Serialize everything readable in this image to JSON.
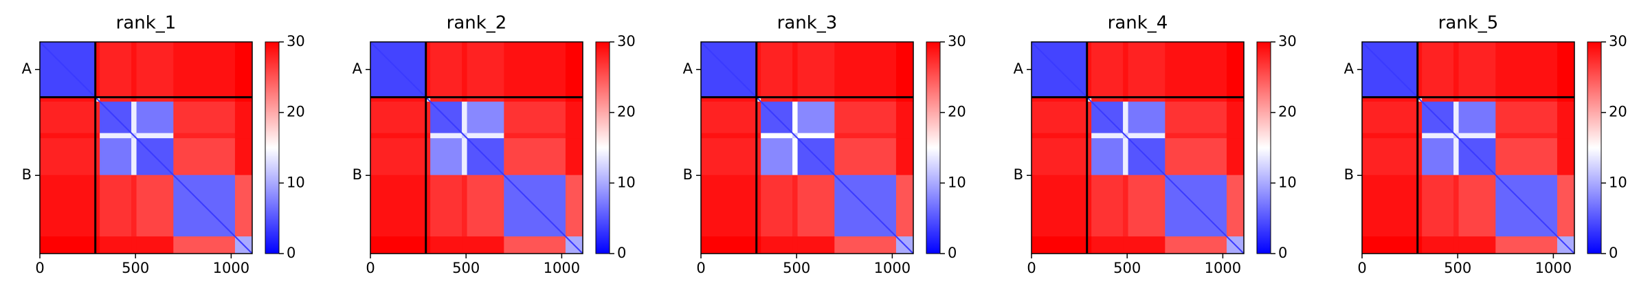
{
  "chart_data": [
    {
      "type": "heatmap",
      "title": "rank_1",
      "xlim": [
        0,
        1110
      ],
      "ylim": [
        1110,
        0
      ],
      "xticks": [
        0,
        500,
        1000
      ],
      "yticks": [
        {
          "value": 145,
          "label": "A"
        },
        {
          "value": 700,
          "label": "B"
        }
      ],
      "bins": [
        0,
        290,
        313,
        478,
        505,
        698,
        1020,
        1110
      ],
      "z": [
        [
          4,
          29,
          28,
          29,
          28,
          29,
          30
        ],
        [
          29,
          15,
          28,
          29,
          28,
          29,
          30
        ],
        [
          28,
          28,
          5,
          14,
          7,
          27,
          29
        ],
        [
          29,
          29,
          14,
          12,
          14,
          28,
          29
        ],
        [
          28,
          28,
          7,
          14,
          5,
          26,
          29
        ],
        [
          29,
          29,
          27,
          28,
          26,
          6,
          25
        ],
        [
          30,
          30,
          29,
          29,
          29,
          25,
          10
        ]
      ],
      "colors": [
        "#0000ff",
        "#ffffff",
        "#ff0000"
      ],
      "clim": [
        0,
        30
      ],
      "cticks": [
        0,
        10,
        20,
        30
      ],
      "chain_breaks": [
        290
      ]
    },
    {
      "type": "heatmap",
      "title": "rank_2",
      "xlim": [
        0,
        1110
      ],
      "ylim": [
        1110,
        0
      ],
      "xticks": [
        0,
        500,
        1000
      ],
      "yticks": [
        {
          "value": 145,
          "label": "A"
        },
        {
          "value": 700,
          "label": "B"
        }
      ],
      "bins": [
        0,
        290,
        313,
        478,
        505,
        698,
        1020,
        1110
      ],
      "z": [
        [
          4,
          29,
          28,
          29,
          28,
          29,
          30
        ],
        [
          29,
          15,
          28,
          29,
          28,
          29,
          30
        ],
        [
          28,
          28,
          5,
          14,
          8,
          27,
          29
        ],
        [
          29,
          29,
          14,
          12,
          14,
          28,
          29
        ],
        [
          28,
          28,
          8,
          14,
          5,
          26,
          29
        ],
        [
          29,
          29,
          27,
          28,
          26,
          6,
          25
        ],
        [
          30,
          30,
          29,
          29,
          29,
          25,
          10
        ]
      ],
      "colors": [
        "#0000ff",
        "#ffffff",
        "#ff0000"
      ],
      "clim": [
        0,
        30
      ],
      "cticks": [
        0,
        10,
        20,
        30
      ],
      "chain_breaks": [
        290
      ]
    },
    {
      "type": "heatmap",
      "title": "rank_3",
      "xlim": [
        0,
        1110
      ],
      "ylim": [
        1110,
        0
      ],
      "xticks": [
        0,
        500,
        1000
      ],
      "yticks": [
        {
          "value": 145,
          "label": "A"
        },
        {
          "value": 700,
          "label": "B"
        }
      ],
      "bins": [
        0,
        290,
        313,
        478,
        505,
        698,
        1020,
        1110
      ],
      "z": [
        [
          4,
          29,
          28,
          29,
          28,
          29,
          30
        ],
        [
          29,
          15,
          28,
          29,
          28,
          29,
          30
        ],
        [
          28,
          28,
          5,
          15,
          8,
          27,
          29
        ],
        [
          29,
          29,
          15,
          12,
          15,
          28,
          29
        ],
        [
          28,
          28,
          8,
          15,
          5,
          26,
          29
        ],
        [
          29,
          29,
          27,
          28,
          26,
          6,
          25
        ],
        [
          30,
          30,
          29,
          29,
          29,
          25,
          10
        ]
      ],
      "colors": [
        "#0000ff",
        "#ffffff",
        "#ff0000"
      ],
      "clim": [
        0,
        30
      ],
      "cticks": [
        0,
        10,
        20,
        30
      ],
      "chain_breaks": [
        290
      ]
    },
    {
      "type": "heatmap",
      "title": "rank_4",
      "xlim": [
        0,
        1110
      ],
      "ylim": [
        1110,
        0
      ],
      "xticks": [
        0,
        500,
        1000
      ],
      "yticks": [
        {
          "value": 145,
          "label": "A"
        },
        {
          "value": 700,
          "label": "B"
        }
      ],
      "bins": [
        0,
        290,
        313,
        478,
        505,
        698,
        1020,
        1110
      ],
      "z": [
        [
          4,
          29,
          28,
          29,
          28,
          29,
          30
        ],
        [
          29,
          15,
          28,
          29,
          28,
          29,
          30
        ],
        [
          28,
          28,
          5,
          14,
          7,
          27,
          29
        ],
        [
          29,
          29,
          14,
          12,
          14,
          28,
          29
        ],
        [
          28,
          28,
          7,
          14,
          5,
          26,
          29
        ],
        [
          29,
          29,
          27,
          28,
          26,
          6,
          25
        ],
        [
          30,
          30,
          29,
          29,
          29,
          25,
          10
        ]
      ],
      "colors": [
        "#0000ff",
        "#ffffff",
        "#ff0000"
      ],
      "clim": [
        0,
        30
      ],
      "cticks": [
        0,
        10,
        20,
        30
      ],
      "chain_breaks": [
        290
      ]
    },
    {
      "type": "heatmap",
      "title": "rank_5",
      "xlim": [
        0,
        1110
      ],
      "ylim": [
        1110,
        0
      ],
      "xticks": [
        0,
        500,
        1000
      ],
      "yticks": [
        {
          "value": 145,
          "label": "A"
        },
        {
          "value": 700,
          "label": "B"
        }
      ],
      "bins": [
        0,
        290,
        313,
        478,
        505,
        698,
        1020,
        1110
      ],
      "z": [
        [
          4,
          29,
          28,
          29,
          28,
          29,
          30
        ],
        [
          29,
          15,
          28,
          29,
          28,
          29,
          30
        ],
        [
          28,
          28,
          5,
          14,
          7,
          27,
          29
        ],
        [
          29,
          29,
          14,
          12,
          14,
          28,
          29
        ],
        [
          28,
          28,
          7,
          14,
          5,
          26,
          29
        ],
        [
          29,
          29,
          27,
          28,
          26,
          6,
          25
        ],
        [
          30,
          30,
          29,
          29,
          29,
          25,
          10
        ]
      ],
      "colors": [
        "#0000ff",
        "#ffffff",
        "#ff0000"
      ],
      "clim": [
        0,
        30
      ],
      "cticks": [
        0,
        10,
        20,
        30
      ],
      "chain_breaks": [
        290
      ]
    }
  ]
}
